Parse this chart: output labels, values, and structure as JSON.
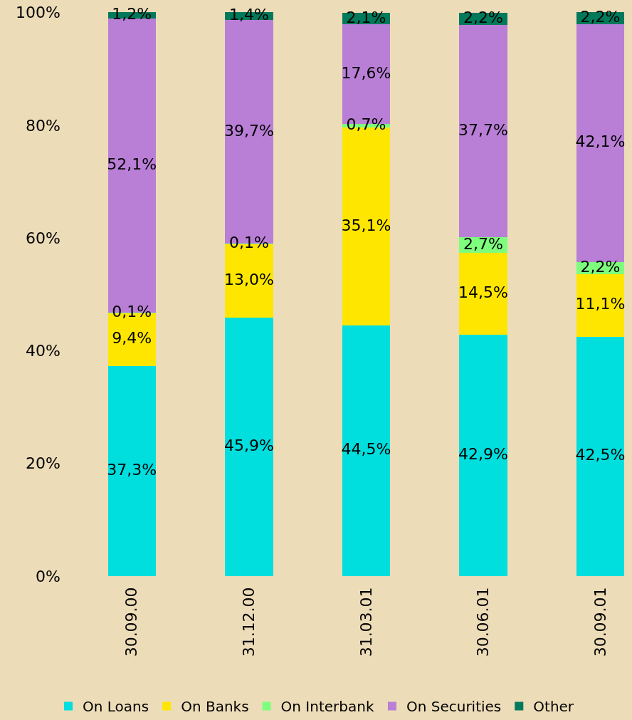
{
  "chart_data": {
    "type": "bar",
    "stacked": true,
    "categories": [
      "30.09.00",
      "31.12.00",
      "31.03.01",
      "30.06.01",
      "30.09.01"
    ],
    "series": [
      {
        "name": "On Loans",
        "color": "#00dede",
        "values": [
          37.3,
          45.9,
          44.5,
          42.9,
          42.5
        ],
        "value_labels": [
          "37,3%",
          "45,9%",
          "44,5%",
          "42,9%",
          "42,5%"
        ]
      },
      {
        "name": "On Banks",
        "color": "#ffe600",
        "values": [
          9.4,
          13.0,
          35.1,
          14.5,
          11.1
        ],
        "value_labels": [
          "9,4%",
          "13,0%",
          "35,1%",
          "14,5%",
          "11,1%"
        ]
      },
      {
        "name": "On Interbank",
        "color": "#7dff7d",
        "values": [
          0.1,
          0.1,
          0.7,
          2.7,
          2.2
        ],
        "value_labels": [
          "0,1%",
          "0,1%",
          "0,7%",
          "2,7%",
          "2,2%"
        ]
      },
      {
        "name": "On Securities",
        "color": "#b97fd6",
        "values": [
          52.1,
          39.7,
          17.6,
          37.7,
          42.1
        ],
        "value_labels": [
          "52,1%",
          "39,7%",
          "17,6%",
          "37,7%",
          "42,1%"
        ]
      },
      {
        "name": "Other",
        "color": "#007a5a",
        "values": [
          1.2,
          1.4,
          2.1,
          2.2,
          2.2
        ],
        "value_labels": [
          "1,2%",
          "1,4%",
          "2,1%",
          "2,2%",
          "2,2%"
        ]
      }
    ],
    "ylim": [
      0,
      100.1
    ],
    "yticks": [
      {
        "value": 0,
        "label": "0%"
      },
      {
        "value": 20,
        "label": "20%"
      },
      {
        "value": 40,
        "label": "40%"
      },
      {
        "value": 60,
        "label": "60%"
      },
      {
        "value": 80,
        "label": "80%"
      },
      {
        "value": 100,
        "label": "100%"
      }
    ],
    "grid": false,
    "legend": "bottom"
  }
}
